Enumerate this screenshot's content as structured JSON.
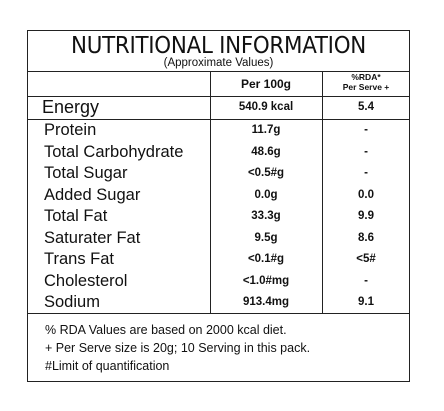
{
  "label": {
    "title": "NUTRITIONAL INFORMATION",
    "subtitle": "(Approximate Values)",
    "columns": {
      "per100": "Per 100g",
      "rda_line1": "%RDA*",
      "rda_line2": "Per Serve +"
    },
    "rows": [
      {
        "nutrient": "Energy",
        "per100": "540.9 kcal",
        "rda": "5.4"
      },
      {
        "nutrient": "Protein",
        "per100": "11.7g",
        "rda": "-"
      },
      {
        "nutrient": "Total Carbohydrate",
        "per100": "48.6g",
        "rda": "-"
      },
      {
        "nutrient": "Total Sugar",
        "per100": "<0.5#g",
        "rda": "-"
      },
      {
        "nutrient": "Added Sugar",
        "per100": "0.0g",
        "rda": "0.0"
      },
      {
        "nutrient": "Total Fat",
        "per100": "33.3g",
        "rda": "9.9"
      },
      {
        "nutrient": "Saturater Fat",
        "per100": "9.5g",
        "rda": "8.6"
      },
      {
        "nutrient": "Trans Fat",
        "per100": "<0.1#g",
        "rda": "<5#"
      },
      {
        "nutrient": "Cholesterol",
        "per100": "<1.0#mg",
        "rda": "-"
      },
      {
        "nutrient": "Sodium",
        "per100": "913.4mg",
        "rda": "9.1"
      }
    ],
    "notes": [
      "% RDA Values are based on 2000 kcal diet.",
      "+ Per Serve size is 20g; 10 Serving in this pack.",
      "#Limit of quantification"
    ]
  }
}
